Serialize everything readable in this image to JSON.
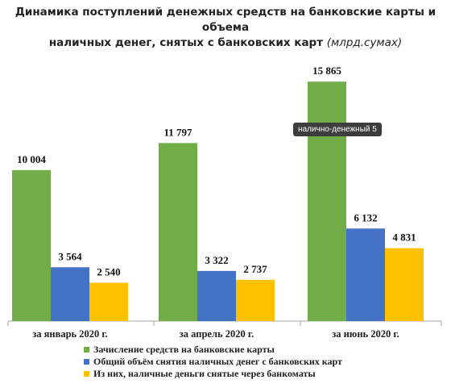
{
  "title_line1": "Динамика поступлений денежных средств на банковские карты и объема",
  "title_line2": "наличных денег, снятых с банковских карт",
  "title_unit": "(млрд.сумах)",
  "tooltip": "нали­чно-денежный 5",
  "colors": {
    "green": "#70ad47",
    "blue": "#4472c4",
    "yellow": "#ffc000"
  },
  "chart_data": {
    "type": "bar",
    "categories": [
      "за январь 2020 г.",
      "за апрель 2020 г.",
      "за июнь 2020 г."
    ],
    "series": [
      {
        "name": "Зачисление средств на банковские карты",
        "values": [
          10004,
          11797,
          15865
        ],
        "labels": [
          "10 004",
          "11 797",
          "15 865"
        ],
        "color": "#70ad47"
      },
      {
        "name": "Общий объём снятия наличных денег с банковских карт",
        "values": [
          3564,
          3322,
          6132
        ],
        "labels": [
          "3 564",
          "3 322",
          "6 132"
        ],
        "color": "#4472c4"
      },
      {
        "name": "Из них, наличные деньги снятые через банкоматы",
        "values": [
          2540,
          2737,
          4831
        ],
        "labels": [
          "2 540",
          "2 737",
          "4 831"
        ],
        "color": "#ffc000"
      }
    ],
    "legend": "bottom",
    "grid": false
  }
}
